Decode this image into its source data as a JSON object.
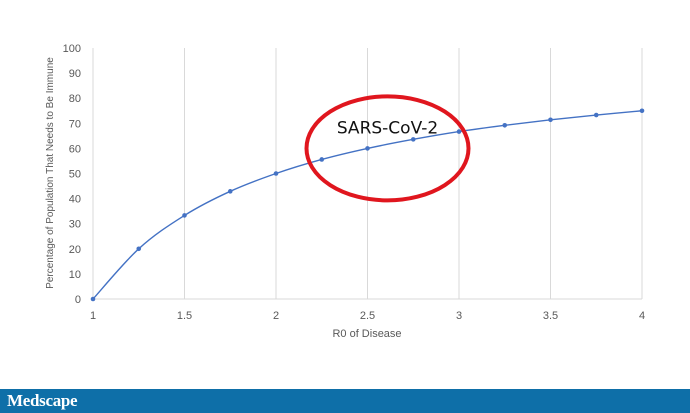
{
  "chart_data": {
    "type": "line",
    "title": "",
    "xlabel": "R0 of Disease",
    "ylabel": "Percentage of Population That Needs to Be Immune",
    "xlim": [
      1,
      4
    ],
    "ylim": [
      0,
      100
    ],
    "x_ticks": [
      "1",
      "1.5",
      "2",
      "2.5",
      "3",
      "3.5",
      "4"
    ],
    "y_ticks": [
      "0",
      "10",
      "20",
      "30",
      "40",
      "50",
      "60",
      "70",
      "80",
      "90",
      "100"
    ],
    "grid": "vertical",
    "legend": "none",
    "series": [
      {
        "color": "#4472c4",
        "x": [
          1,
          1.25,
          1.5,
          1.75,
          2,
          2.25,
          2.5,
          2.75,
          3,
          3.25,
          3.5,
          3.75,
          4
        ],
        "y": [
          0,
          20,
          33.3,
          42.9,
          50,
          55.6,
          60,
          63.6,
          66.7,
          69.2,
          71.4,
          73.3,
          75
        ]
      }
    ],
    "annotations": [
      {
        "text": "SARS-CoV-2",
        "shape": "ellipse",
        "color": "#e0161e",
        "x": 2.5,
        "y": 64
      }
    ]
  },
  "footer": {
    "logo": "Medscape",
    "color": "#0e6fa8"
  }
}
